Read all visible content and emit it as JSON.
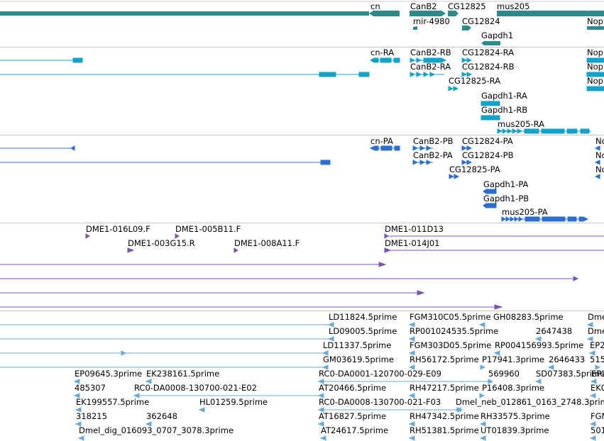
{
  "colors": {
    "gene": "#2e8b8b",
    "transcript": "#14a3c8",
    "protein": "#2a6fd0",
    "clone": "#7755b5",
    "est": "#6aaad8",
    "divider": "#c8c8c8",
    "text": "#000000"
  },
  "tracks": [
    {
      "id": "genes",
      "kind": "gene",
      "labels": [
        {
          "text": "cn"
        },
        {
          "text": "CanB2"
        },
        {
          "text": "CG12825"
        },
        {
          "text": "mus205"
        },
        {
          "text": "mir-4980"
        },
        {
          "text": "CG12824"
        },
        {
          "text": "Nop"
        },
        {
          "text": "Gapdh1"
        }
      ]
    },
    {
      "id": "transcripts",
      "kind": "transcript",
      "labels": [
        {
          "text": "cn-RA"
        },
        {
          "text": "CanB2-RB"
        },
        {
          "text": "CG12824-RA"
        },
        {
          "text": "Nop"
        },
        {
          "text": "CanB2-RA"
        },
        {
          "text": "CG12824-RB"
        },
        {
          "text": "Nop"
        },
        {
          "text": "CG12825-RA"
        },
        {
          "text": "Nop"
        },
        {
          "text": "Gapdh1-RA"
        },
        {
          "text": "Gapdh1-RB"
        },
        {
          "text": "mus205-RA"
        }
      ]
    },
    {
      "id": "proteins",
      "kind": "protein",
      "labels": [
        {
          "text": "cn-PA"
        },
        {
          "text": "CanB2-PB"
        },
        {
          "text": "CG12824-PA"
        },
        {
          "text": "No"
        },
        {
          "text": "CanB2-PA"
        },
        {
          "text": "CG12824-PB"
        },
        {
          "text": "No"
        },
        {
          "text": "CG12825-PA"
        },
        {
          "text": "No"
        },
        {
          "text": "Gapdh1-PA"
        },
        {
          "text": "Gapdh1-PB"
        },
        {
          "text": "mus205-PA"
        }
      ]
    },
    {
      "id": "clones",
      "kind": "clone",
      "labels": [
        {
          "text": "DME1-016L09.F"
        },
        {
          "text": "DME1-005B11.F"
        },
        {
          "text": "DME1-011D13"
        },
        {
          "text": "DME1-003G15.R"
        },
        {
          "text": "DME1-008A11.F"
        },
        {
          "text": "DME1-014J01"
        }
      ]
    },
    {
      "id": "ests",
      "kind": "est",
      "labels": [
        {
          "text": "LD11824.5prime"
        },
        {
          "text": "FGM310C05.5prime"
        },
        {
          "text": "GH08283.5prime"
        },
        {
          "text": "Dme"
        },
        {
          "text": "LD09005.5prime"
        },
        {
          "text": "RP001024535.5prime"
        },
        {
          "text": "2647438"
        },
        {
          "text": "Dme"
        },
        {
          "text": "LD11337.5prime"
        },
        {
          "text": "FGM303D05.5prime"
        },
        {
          "text": "RP004156993.5prime"
        },
        {
          "text": "EP2"
        },
        {
          "text": "GM03619.5prime"
        },
        {
          "text": "RH56172.5prime"
        },
        {
          "text": "P17941.3prime"
        },
        {
          "text": "2646433"
        },
        {
          "text": "515"
        },
        {
          "text": "EP09645.3prime"
        },
        {
          "text": "EK238161.5prime"
        },
        {
          "text": "RC0-DA0001-120700-029-E09"
        },
        {
          "text": "569960"
        },
        {
          "text": "SD07383.5prime"
        },
        {
          "text": "EP2"
        },
        {
          "text": "485307"
        },
        {
          "text": "RC0-DA0008-130700-021-E02"
        },
        {
          "text": "AT20466.5prime"
        },
        {
          "text": "RH47217.5prime"
        },
        {
          "text": "P16408.3prime"
        },
        {
          "text": "EK0"
        },
        {
          "text": "EK199557.5prime"
        },
        {
          "text": "HL01259.5prime"
        },
        {
          "text": "RC0-DA0008-130700-021-F03"
        },
        {
          "text": "Dmel_neb_012861_0163_2748.3prime"
        },
        {
          "text": "318215"
        },
        {
          "text": "362648"
        },
        {
          "text": "AT16827.5prime"
        },
        {
          "text": "RH47342.5prime"
        },
        {
          "text": "RH33575.3prime"
        },
        {
          "text": "FGM"
        },
        {
          "text": "Dmel_dig_016093_0707_3078.3prime"
        },
        {
          "text": "AT24617.5prime"
        },
        {
          "text": "RH51381.5prime"
        },
        {
          "text": "UT01839.3prime"
        },
        {
          "text": "501"
        }
      ]
    }
  ]
}
